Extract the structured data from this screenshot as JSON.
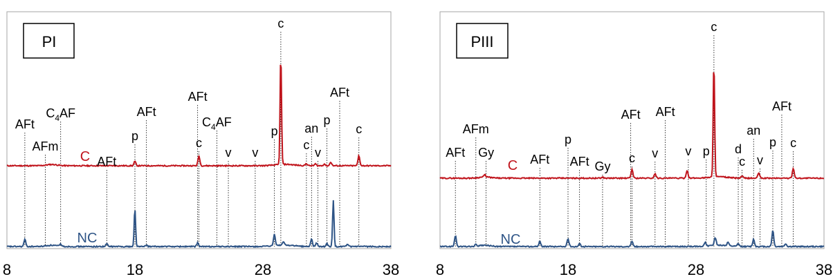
{
  "colors": {
    "c_series": "#c0141c",
    "nc_series": "#2e5486",
    "frame": "#a6a6a6",
    "marker": "#000000"
  },
  "panels": [
    {
      "id": "PI",
      "label": "PI",
      "series_labels": {
        "c": "C",
        "nc": "NC"
      },
      "x_ticks": [
        "8",
        "18",
        "28",
        "38"
      ],
      "peaks": [
        {
          "text": "AFt",
          "x": 9.4
        },
        {
          "text": "AFm",
          "x": 11.0
        },
        {
          "text": "C4AF",
          "sub": "4",
          "x": 12.2
        },
        {
          "text": "AFt",
          "x": 15.8
        },
        {
          "text": "p",
          "x": 18.0
        },
        {
          "text": "AFt",
          "x": 18.9
        },
        {
          "text": "AFt",
          "x": 22.9
        },
        {
          "text": "c",
          "x": 23.0
        },
        {
          "text": "C4AF",
          "sub": "4",
          "x": 24.4
        },
        {
          "text": "v",
          "x": 25.3
        },
        {
          "text": "v",
          "x": 27.4
        },
        {
          "text": "p",
          "x": 28.9
        },
        {
          "text": "c",
          "x": 29.4
        },
        {
          "text": "c",
          "x": 31.4
        },
        {
          "text": "an",
          "x": 31.8
        },
        {
          "text": "v",
          "x": 32.3
        },
        {
          "text": "p",
          "x": 33.0
        },
        {
          "text": "AFt",
          "x": 34.0
        },
        {
          "text": "c",
          "x": 35.5
        }
      ]
    },
    {
      "id": "PIII",
      "label": "PIII",
      "series_labels": {
        "c": "C",
        "nc": "NC"
      },
      "x_ticks": [
        "8",
        "18",
        "28",
        "38"
      ],
      "peaks": [
        {
          "text": "AFt",
          "x": 9.2
        },
        {
          "text": "AFm",
          "x": 10.8
        },
        {
          "text": "Gy",
          "x": 11.6
        },
        {
          "text": "AFt",
          "x": 15.8
        },
        {
          "text": "p",
          "x": 18.0
        },
        {
          "text": "AFt",
          "x": 18.9
        },
        {
          "text": "Gy",
          "x": 20.7
        },
        {
          "text": "AFt",
          "x": 22.9
        },
        {
          "text": "c",
          "x": 23.0
        },
        {
          "text": "AFt",
          "x": 25.6
        },
        {
          "text": "v",
          "x": 24.8
        },
        {
          "text": "v",
          "x": 27.4
        },
        {
          "text": "p",
          "x": 28.8
        },
        {
          "text": "c",
          "x": 29.4
        },
        {
          "text": "d",
          "x": 31.3
        },
        {
          "text": "c",
          "x": 31.6
        },
        {
          "text": "an",
          "x": 32.5
        },
        {
          "text": "v",
          "x": 33.0
        },
        {
          "text": "p",
          "x": 34.0
        },
        {
          "text": "AFt",
          "x": 34.7
        },
        {
          "text": "c",
          "x": 35.6
        }
      ]
    }
  ],
  "chart_data": [
    {
      "type": "line",
      "panel": "PI",
      "xlim": [
        8,
        38
      ],
      "x_ticks": [
        8,
        18,
        28,
        38
      ],
      "grid": false,
      "series": [
        {
          "name": "C",
          "color": "#c0141c",
          "baseline": 0.0,
          "peaks": [
            [
              18.0,
              0.12
            ],
            [
              23.0,
              0.28
            ],
            [
              29.4,
              3.05
            ],
            [
              31.4,
              0.06
            ],
            [
              32.1,
              0.05
            ],
            [
              32.8,
              0.05
            ],
            [
              33.3,
              0.1
            ],
            [
              35.5,
              0.28
            ]
          ]
        },
        {
          "name": "NC",
          "color": "#2e5486",
          "baseline": 0.0,
          "peaks": [
            [
              9.4,
              0.2
            ],
            [
              12.2,
              0.06
            ],
            [
              15.8,
              0.08
            ],
            [
              18.0,
              1.05
            ],
            [
              18.9,
              0.04
            ],
            [
              22.9,
              0.1
            ],
            [
              28.9,
              0.32
            ],
            [
              29.6,
              0.1
            ],
            [
              31.8,
              0.2
            ],
            [
              32.2,
              0.1
            ],
            [
              33.0,
              0.08
            ],
            [
              33.5,
              1.28
            ],
            [
              34.6,
              0.05
            ]
          ]
        }
      ]
    },
    {
      "type": "line",
      "panel": "PIII",
      "xlim": [
        8,
        38
      ],
      "x_ticks": [
        8,
        18,
        28,
        38
      ],
      "grid": false,
      "series": [
        {
          "name": "C",
          "color": "#c0141c",
          "baseline": 0.0,
          "peaks": [
            [
              11.5,
              0.06
            ],
            [
              20.7,
              0.03
            ],
            [
              23.0,
              0.25
            ],
            [
              24.8,
              0.13
            ],
            [
              27.3,
              0.22
            ],
            [
              29.4,
              3.2
            ],
            [
              31.6,
              0.06
            ],
            [
              32.9,
              0.15
            ],
            [
              35.6,
              0.28
            ]
          ]
        },
        {
          "name": "NC",
          "color": "#2e5486",
          "baseline": 0.0,
          "peaks": [
            [
              9.2,
              0.3
            ],
            [
              10.8,
              0.05
            ],
            [
              15.8,
              0.15
            ],
            [
              18.0,
              0.22
            ],
            [
              18.9,
              0.08
            ],
            [
              23.0,
              0.15
            ],
            [
              28.7,
              0.1
            ],
            [
              29.5,
              0.22
            ],
            [
              30.5,
              0.1
            ],
            [
              31.3,
              0.08
            ],
            [
              32.5,
              0.2
            ],
            [
              34.0,
              0.45
            ],
            [
              35.0,
              0.08
            ]
          ]
        }
      ]
    }
  ]
}
